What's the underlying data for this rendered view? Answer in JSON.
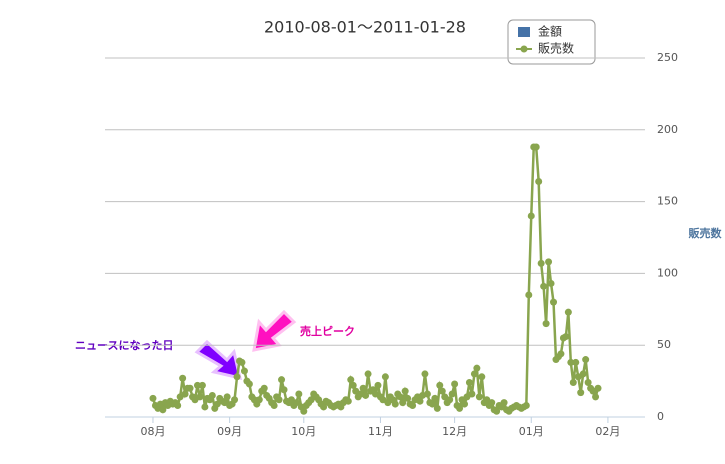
{
  "chart_data": {
    "type": "line",
    "title": "2010-08-01～2011-01-28",
    "y_label": "販売数",
    "x": [
      0,
      1,
      2,
      3,
      4,
      5,
      6,
      7,
      8,
      9,
      10,
      11,
      12,
      13,
      14,
      15,
      16,
      17,
      18,
      19,
      20,
      21,
      22,
      23,
      24,
      25,
      26,
      27,
      28,
      29,
      30,
      31,
      32,
      33,
      34,
      35,
      36,
      37,
      38,
      39,
      40,
      41,
      42,
      43,
      44,
      45,
      46,
      47,
      48,
      49,
      50,
      51,
      52,
      53,
      54,
      55,
      56,
      57,
      58,
      59,
      60,
      61,
      62,
      63,
      64,
      65,
      66,
      67,
      68,
      69,
      70,
      71,
      72,
      73,
      74,
      75,
      76,
      77,
      78,
      79,
      80,
      81,
      82,
      83,
      84,
      85,
      86,
      87,
      88,
      89,
      90,
      91,
      92,
      93,
      94,
      95,
      96,
      97,
      98,
      99,
      100,
      101,
      102,
      103,
      104,
      105,
      106,
      107,
      108,
      109,
      110,
      111,
      112,
      113,
      114,
      115,
      116,
      117,
      118,
      119,
      120,
      121,
      122,
      123,
      124,
      125,
      126,
      127,
      128,
      129,
      130,
      131,
      132,
      133,
      134,
      135,
      136,
      137,
      138,
      139,
      140,
      141,
      142,
      143,
      144,
      145,
      146,
      147,
      148,
      149,
      150,
      151,
      152,
      153,
      154,
      155,
      156,
      157,
      158,
      159,
      160,
      161,
      162,
      163,
      164,
      165,
      166,
      167,
      168,
      169,
      170,
      171,
      172,
      173,
      174,
      175,
      176,
      177,
      178,
      179,
      180
    ],
    "series": [
      {
        "name": "販売数",
        "color": "#89a54e",
        "values": [
          13,
          8,
          6,
          9,
          5,
          10,
          8,
          11,
          9,
          10,
          8,
          14,
          27,
          16,
          20,
          20,
          14,
          12,
          22,
          14,
          22,
          7,
          13,
          12,
          15,
          6,
          9,
          13,
          11,
          10,
          14,
          8,
          9,
          12,
          28,
          39,
          38,
          32,
          25,
          23,
          14,
          12,
          9,
          12,
          18,
          20,
          15,
          13,
          10,
          8,
          14,
          12,
          26,
          19,
          11,
          10,
          12,
          8,
          10,
          16,
          7,
          4,
          8,
          10,
          12,
          16,
          14,
          12,
          9,
          7,
          11,
          10,
          8,
          7,
          8,
          9,
          7,
          10,
          12,
          11,
          26,
          22,
          18,
          14,
          16,
          20,
          15,
          30,
          18,
          19,
          16,
          22,
          14,
          12,
          28,
          10,
          14,
          12,
          9,
          16,
          14,
          10,
          18,
          13,
          9,
          8,
          12,
          14,
          11,
          15,
          30,
          16,
          10,
          9,
          13,
          6,
          22,
          18,
          14,
          10,
          12,
          16,
          23,
          8,
          6,
          12,
          9,
          14,
          24,
          16,
          30,
          34,
          14,
          28,
          10,
          12,
          8,
          10,
          5,
          4,
          8,
          7,
          10,
          5,
          4,
          6,
          7,
          8,
          7,
          6,
          7,
          8,
          85,
          140,
          188,
          188,
          164,
          107,
          91,
          65,
          108,
          93,
          80,
          40,
          42,
          44,
          55,
          56,
          73,
          38,
          24,
          38,
          28,
          17,
          30,
          40,
          24,
          20,
          18,
          14,
          20
        ]
      }
    ],
    "extra_legend": [
      {
        "name": "金額",
        "color": "#4572a7"
      }
    ],
    "xlim": [
      -19.4,
      199
    ],
    "xticks": [
      {
        "value": 0,
        "label": "08月"
      },
      {
        "value": 31,
        "label": "09月"
      },
      {
        "value": 61,
        "label": "10月"
      },
      {
        "value": 92,
        "label": "11月"
      },
      {
        "value": 122,
        "label": "12月"
      },
      {
        "value": 153,
        "label": "01月"
      },
      {
        "value": 184,
        "label": "02月"
      }
    ],
    "ylim": [
      0,
      250
    ],
    "yticks": [
      0,
      50,
      100,
      150,
      200,
      250
    ],
    "grid": true,
    "annotations": [
      "ニュースになった日",
      "売上ピーク"
    ]
  }
}
